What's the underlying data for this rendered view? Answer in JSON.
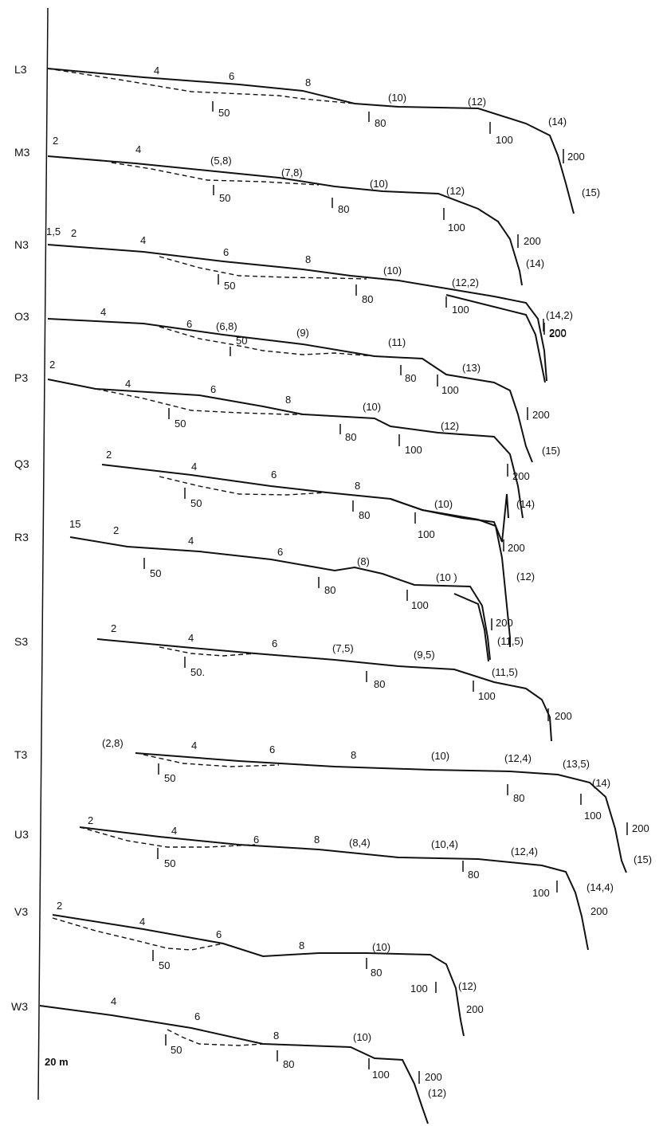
{
  "profiles": [
    {
      "id": "L3",
      "marks": [
        "4",
        "6",
        "8",
        "(10)",
        "(12)",
        "(14)"
      ],
      "scale": [
        "50",
        "80",
        "100",
        "200"
      ]
    },
    {
      "id": "M3",
      "marks": [
        "2",
        "4",
        "(5,8)",
        "(7,8)",
        "(10)",
        "(12)",
        "(15)"
      ],
      "scale": [
        "50",
        "80",
        "100",
        "200"
      ]
    },
    {
      "id": "N3",
      "marks": [
        "1,5",
        "2",
        "4",
        "6",
        "8",
        "(10)",
        "(12,2)",
        "(14)"
      ],
      "scale": [
        "50",
        "80",
        "100",
        "200"
      ]
    },
    {
      "id": "O3",
      "marks": [
        "4",
        "6",
        "(6,8)",
        "(9)",
        "(11)",
        "(14,2)"
      ],
      "scale": [
        "50",
        "80",
        "100",
        "200"
      ]
    },
    {
      "id": "P3",
      "marks": [
        "2",
        "4",
        "6",
        "8",
        "(10)",
        "(12)",
        "(13)",
        "(15)"
      ],
      "scale": [
        "50",
        "80",
        "100",
        "200"
      ]
    },
    {
      "id": "Q3",
      "marks": [
        "2",
        "4",
        "6",
        "8",
        "(10)",
        "(14)"
      ],
      "scale": [
        "50",
        "80",
        "100",
        "200"
      ]
    },
    {
      "id": "R3",
      "marks": [
        "15",
        "2",
        "4",
        "6",
        "(8)",
        "(10 )",
        "(12)"
      ],
      "scale": [
        "50",
        "80",
        "100",
        "200"
      ]
    },
    {
      "id": "S3",
      "marks": [
        "2",
        "4",
        "6",
        "(7,5)",
        "(9,5)",
        "(11,5)",
        "(11,5)"
      ],
      "scale": [
        "50.",
        "80",
        "100",
        "200"
      ]
    },
    {
      "id": "T3",
      "marks": [
        "(2,8)",
        "4",
        "6",
        "8",
        "(10)",
        "(12,4)",
        "(13,5)",
        "(14)",
        "(15)"
      ],
      "scale": [
        "50",
        "80",
        "100",
        "200"
      ]
    },
    {
      "id": "U3",
      "marks": [
        "2",
        "4",
        "6",
        "8",
        "(8,4)",
        "(10,4)",
        "(12,4)",
        "(14,4)"
      ],
      "scale": [
        "50",
        "80",
        "100",
        "200"
      ]
    },
    {
      "id": "V3",
      "marks": [
        "2",
        "4",
        "6",
        "8",
        "(10)",
        "(12)"
      ],
      "scale": [
        "50",
        "80",
        "100",
        "200"
      ]
    },
    {
      "id": "W3",
      "marks": [
        "4",
        "6",
        "8",
        "(10)",
        "(12)"
      ],
      "scale": [
        "50",
        "80",
        "100",
        "200"
      ]
    }
  ],
  "scale_bar_label": "20 m",
  "colors": {
    "ink": "#111111",
    "paper": "#ffffff"
  }
}
